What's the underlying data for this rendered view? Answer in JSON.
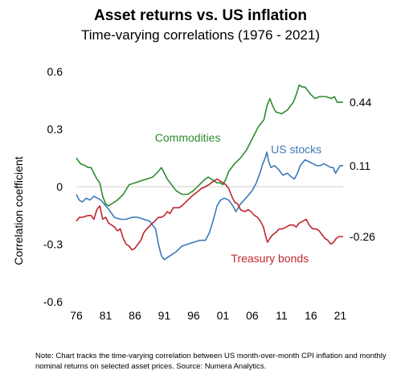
{
  "chart_data": {
    "type": "line",
    "title": "Asset returns vs. US inflation",
    "subtitle": "Time-varying correlations (1976 - 2021)",
    "xlabel": "",
    "ylabel": "Correlation coefficient",
    "xlim": [
      1976,
      2021.5
    ],
    "ylim": [
      -0.6,
      0.6
    ],
    "yticks": [
      -0.6,
      -0.3,
      0,
      0.3,
      0.6
    ],
    "ytick_labels": [
      "-0.6",
      "-0.3",
      "0",
      "0.3",
      "0.6"
    ],
    "xticks": [
      1976,
      1981,
      1986,
      1991,
      1996,
      2001,
      2006,
      2011,
      2016,
      2021
    ],
    "xtick_labels": [
      "76",
      "81",
      "86",
      "91",
      "96",
      "01",
      "06",
      "11",
      "16",
      "21"
    ],
    "zero_line": true,
    "grid": false,
    "series": [
      {
        "name": "Commodities",
        "color": "#2e8b2e",
        "end_label": "0.44",
        "points": [
          [
            1976,
            0.15
          ],
          [
            1976.7,
            0.12
          ],
          [
            1977.5,
            0.11
          ],
          [
            1978,
            0.1
          ],
          [
            1978.5,
            0.1
          ],
          [
            1979,
            0.07
          ],
          [
            1979.5,
            0.04
          ],
          [
            1980,
            0.02
          ],
          [
            1980.5,
            -0.05
          ],
          [
            1981,
            -0.09
          ],
          [
            1981.5,
            -0.1
          ],
          [
            1982,
            -0.09
          ],
          [
            1983,
            -0.07
          ],
          [
            1984,
            -0.04
          ],
          [
            1985,
            0.01
          ],
          [
            1986,
            0.02
          ],
          [
            1987,
            0.03
          ],
          [
            1988,
            0.04
          ],
          [
            1989,
            0.05
          ],
          [
            1990,
            0.08
          ],
          [
            1990.5,
            0.1
          ],
          [
            1991,
            0.07
          ],
          [
            1991.5,
            0.04
          ],
          [
            1992,
            0.02
          ],
          [
            1993,
            -0.02
          ],
          [
            1994,
            -0.04
          ],
          [
            1995,
            -0.04
          ],
          [
            1996,
            -0.02
          ],
          [
            1997,
            0.01
          ],
          [
            1998,
            0.04
          ],
          [
            1998.5,
            0.05
          ],
          [
            1999,
            0.04
          ],
          [
            2000,
            0.02
          ],
          [
            2000.5,
            0.02
          ],
          [
            2001,
            0.01
          ],
          [
            2001.5,
            0.04
          ],
          [
            2002,
            0.08
          ],
          [
            2003,
            0.12
          ],
          [
            2004,
            0.15
          ],
          [
            2005,
            0.19
          ],
          [
            2006,
            0.25
          ],
          [
            2007,
            0.31
          ],
          [
            2008,
            0.35
          ],
          [
            2008.5,
            0.42
          ],
          [
            2009,
            0.46
          ],
          [
            2009.5,
            0.42
          ],
          [
            2010,
            0.39
          ],
          [
            2011,
            0.38
          ],
          [
            2012,
            0.4
          ],
          [
            2013,
            0.44
          ],
          [
            2013.5,
            0.48
          ],
          [
            2014,
            0.53
          ],
          [
            2014.5,
            0.52
          ],
          [
            2015,
            0.52
          ],
          [
            2015.5,
            0.5
          ],
          [
            2016,
            0.48
          ],
          [
            2016.7,
            0.46
          ],
          [
            2017.5,
            0.47
          ],
          [
            2018.5,
            0.47
          ],
          [
            2019.5,
            0.46
          ],
          [
            2020,
            0.47
          ],
          [
            2020.5,
            0.44
          ],
          [
            2021,
            0.44
          ],
          [
            2021.5,
            0.44
          ]
        ]
      },
      {
        "name": "US stocks",
        "color": "#3d7ab8",
        "end_label": "0.11",
        "points": [
          [
            1976,
            -0.04
          ],
          [
            1976.5,
            -0.07
          ],
          [
            1977,
            -0.08
          ],
          [
            1977.7,
            -0.06
          ],
          [
            1978.3,
            -0.07
          ],
          [
            1979,
            -0.05
          ],
          [
            1979.6,
            -0.06
          ],
          [
            1980.2,
            -0.07
          ],
          [
            1980.7,
            -0.09
          ],
          [
            1981.3,
            -0.11
          ],
          [
            1981.8,
            -0.13
          ],
          [
            1982.5,
            -0.16
          ],
          [
            1983.5,
            -0.17
          ],
          [
            1984.5,
            -0.17
          ],
          [
            1985.5,
            -0.16
          ],
          [
            1986.5,
            -0.16
          ],
          [
            1987.5,
            -0.17
          ],
          [
            1988.5,
            -0.18
          ],
          [
            1989.5,
            -0.22
          ],
          [
            1990,
            -0.3
          ],
          [
            1990.5,
            -0.36
          ],
          [
            1991,
            -0.38
          ],
          [
            1991.5,
            -0.37
          ],
          [
            1992,
            -0.36
          ],
          [
            1993,
            -0.34
          ],
          [
            1994,
            -0.31
          ],
          [
            1995,
            -0.3
          ],
          [
            1996,
            -0.29
          ],
          [
            1997,
            -0.28
          ],
          [
            1998,
            -0.28
          ],
          [
            1998.7,
            -0.24
          ],
          [
            1999.3,
            -0.18
          ],
          [
            2000,
            -0.1
          ],
          [
            2000.6,
            -0.07
          ],
          [
            2001.2,
            -0.06
          ],
          [
            2002,
            -0.07
          ],
          [
            2002.7,
            -0.1
          ],
          [
            2003.2,
            -0.13
          ],
          [
            2003.6,
            -0.11
          ],
          [
            2004,
            -0.09
          ],
          [
            2004.6,
            -0.07
          ],
          [
            2005.2,
            -0.05
          ],
          [
            2006,
            -0.02
          ],
          [
            2006.7,
            0.02
          ],
          [
            2007.3,
            0.07
          ],
          [
            2007.8,
            0.12
          ],
          [
            2008.2,
            0.15
          ],
          [
            2008.5,
            0.18
          ],
          [
            2008.8,
            0.13
          ],
          [
            2009.2,
            0.1
          ],
          [
            2009.8,
            0.11
          ],
          [
            2010.5,
            0.09
          ],
          [
            2011.2,
            0.06
          ],
          [
            2012,
            0.07
          ],
          [
            2012.7,
            0.05
          ],
          [
            2013.2,
            0.04
          ],
          [
            2013.7,
            0.07
          ],
          [
            2014.2,
            0.11
          ],
          [
            2015,
            0.14
          ],
          [
            2015.7,
            0.13
          ],
          [
            2016.3,
            0.12
          ],
          [
            2017,
            0.11
          ],
          [
            2017.6,
            0.11
          ],
          [
            2018.2,
            0.12
          ],
          [
            2018.8,
            0.11
          ],
          [
            2019.4,
            0.1
          ],
          [
            2019.8,
            0.1
          ],
          [
            2020.2,
            0.07
          ],
          [
            2020.6,
            0.09
          ],
          [
            2021,
            0.11
          ],
          [
            2021.5,
            0.11
          ]
        ]
      },
      {
        "name": "Treasury bonds",
        "color": "#c0262e",
        "end_label": "-0.26",
        "points": [
          [
            1976,
            -0.18
          ],
          [
            1976.5,
            -0.16
          ],
          [
            1977,
            -0.16
          ],
          [
            1978,
            -0.15
          ],
          [
            1978.5,
            -0.15
          ],
          [
            1979,
            -0.17
          ],
          [
            1979.5,
            -0.12
          ],
          [
            1980,
            -0.1
          ],
          [
            1980.5,
            -0.17
          ],
          [
            1981,
            -0.16
          ],
          [
            1981.5,
            -0.19
          ],
          [
            1982,
            -0.2
          ],
          [
            1982.5,
            -0.21
          ],
          [
            1983,
            -0.23
          ],
          [
            1983.5,
            -0.22
          ],
          [
            1984,
            -0.27
          ],
          [
            1984.5,
            -0.3
          ],
          [
            1985,
            -0.31
          ],
          [
            1985.5,
            -0.33
          ],
          [
            1986,
            -0.32
          ],
          [
            1986.5,
            -0.3
          ],
          [
            1987,
            -0.28
          ],
          [
            1987.5,
            -0.24
          ],
          [
            1988,
            -0.22
          ],
          [
            1989,
            -0.19
          ],
          [
            1990,
            -0.16
          ],
          [
            1990.5,
            -0.16
          ],
          [
            1991,
            -0.15
          ],
          [
            1991.5,
            -0.13
          ],
          [
            1992,
            -0.14
          ],
          [
            1992.5,
            -0.11
          ],
          [
            1993,
            -0.11
          ],
          [
            1993.5,
            -0.11
          ],
          [
            1994,
            -0.1
          ],
          [
            1995,
            -0.07
          ],
          [
            1995.7,
            -0.05
          ],
          [
            1996.5,
            -0.03
          ],
          [
            1997.3,
            -0.01
          ],
          [
            1998,
            0.0
          ],
          [
            1998.6,
            0.01
          ],
          [
            1999,
            0.02
          ],
          [
            1999.5,
            0.03
          ],
          [
            2000,
            0.04
          ],
          [
            2000.5,
            0.03
          ],
          [
            2001,
            0.02
          ],
          [
            2001.5,
            0.01
          ],
          [
            2002,
            -0.01
          ],
          [
            2002.5,
            -0.05
          ],
          [
            2003,
            -0.08
          ],
          [
            2003.5,
            -0.09
          ],
          [
            2004,
            -0.12
          ],
          [
            2004.7,
            -0.13
          ],
          [
            2005.3,
            -0.12
          ],
          [
            2005.8,
            -0.13
          ],
          [
            2006.4,
            -0.15
          ],
          [
            2006.9,
            -0.16
          ],
          [
            2007.4,
            -0.18
          ],
          [
            2007.9,
            -0.21
          ],
          [
            2008.3,
            -0.26
          ],
          [
            2008.6,
            -0.29
          ],
          [
            2009,
            -0.27
          ],
          [
            2009.5,
            -0.25
          ],
          [
            2010,
            -0.24
          ],
          [
            2010.6,
            -0.22
          ],
          [
            2011.2,
            -0.22
          ],
          [
            2011.8,
            -0.21
          ],
          [
            2012.4,
            -0.2
          ],
          [
            2013,
            -0.2
          ],
          [
            2013.5,
            -0.21
          ],
          [
            2014,
            -0.19
          ],
          [
            2014.6,
            -0.18
          ],
          [
            2015.2,
            -0.17
          ],
          [
            2015.7,
            -0.2
          ],
          [
            2016.3,
            -0.22
          ],
          [
            2016.9,
            -0.22
          ],
          [
            2017.4,
            -0.23
          ],
          [
            2017.9,
            -0.25
          ],
          [
            2018.4,
            -0.27
          ],
          [
            2018.9,
            -0.28
          ],
          [
            2019.4,
            -0.3
          ],
          [
            2019.9,
            -0.29
          ],
          [
            2020.3,
            -0.27
          ],
          [
            2020.8,
            -0.26
          ],
          [
            2021.3,
            -0.26
          ],
          [
            2021.5,
            -0.26
          ]
        ]
      }
    ],
    "annotations": [
      {
        "text": "Commodities",
        "series": "Commodities",
        "x": 1995,
        "y": 0.235
      },
      {
        "text": "US stocks",
        "series": "US stocks",
        "x": 2013.5,
        "y": 0.175
      },
      {
        "text": "Treasury bonds",
        "series": "Treasury bonds",
        "x": 2009,
        "y": -0.395
      }
    ]
  },
  "note": "Note: Chart tracks the time-varying correlation between US month-over-month  CPI inflation and monthly nominal returns on selected asset prices. Source:  Numera Analytics."
}
